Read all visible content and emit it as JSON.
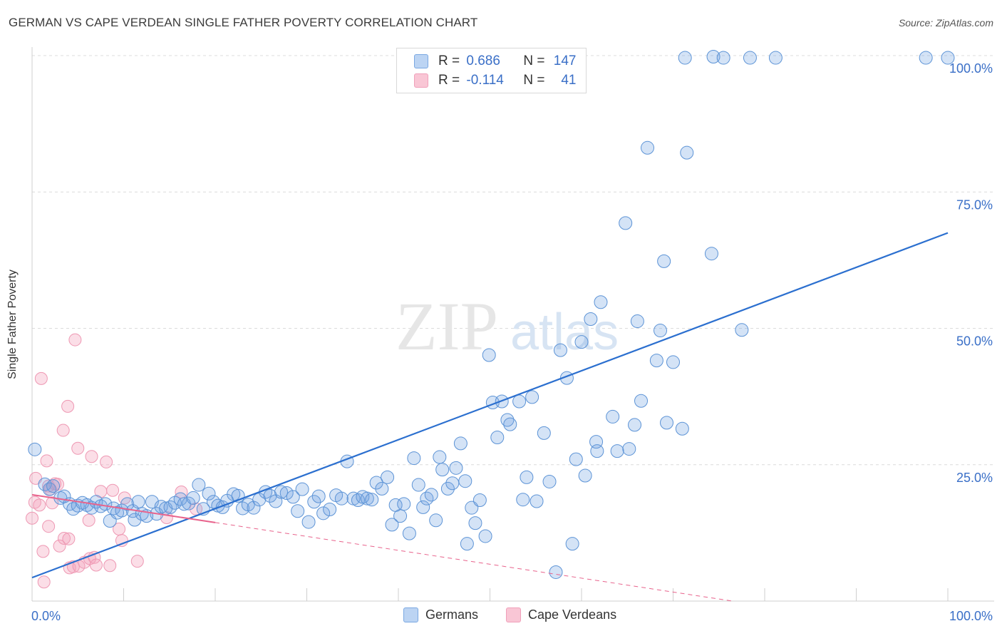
{
  "title": "GERMAN VS CAPE VERDEAN SINGLE FATHER POVERTY CORRELATION CHART",
  "source": "Source: ZipAtlas.com",
  "watermark": {
    "zip": "ZIP",
    "atlas": "atlas"
  },
  "legend": {
    "r_label": "R =",
    "n_label": "N =",
    "series1": {
      "r": "0.686",
      "n": "147"
    },
    "series2": {
      "r": "-0.114",
      "n": "41"
    }
  },
  "colors": {
    "germans": "#6fa3e0",
    "germans_line": "#2b6fcf",
    "cape": "#f3a0ba",
    "cape_line": "#e8638c",
    "axis_text": "#3a6fc7"
  },
  "chart_data": {
    "type": "scatter",
    "xlabel": "",
    "ylabel": "Single Father Poverty",
    "xlim": [
      0,
      100
    ],
    "ylim": [
      0,
      100
    ],
    "x_tick_labels": [
      "0.0%",
      "100.0%"
    ],
    "y_tick_labels": [
      "25.0%",
      "50.0%",
      "75.0%",
      "100.0%"
    ],
    "y_ticks": [
      25,
      50,
      75,
      100
    ],
    "grid": true,
    "legend_position": "top-center",
    "series": [
      {
        "name": "Germans",
        "color": "#6fa3e0",
        "trend": {
          "x": [
            0,
            100
          ],
          "y": [
            4.3,
            67.5
          ]
        },
        "points": [
          [
            0.3,
            27.8
          ],
          [
            1.4,
            21.4
          ],
          [
            1.9,
            20.5
          ],
          [
            2.3,
            21.1
          ],
          [
            3.1,
            18.9
          ],
          [
            3.5,
            19.2
          ],
          [
            4.1,
            17.8
          ],
          [
            4.5,
            16.9
          ],
          [
            5.0,
            17.5
          ],
          [
            5.5,
            18.0
          ],
          [
            6.0,
            17.6
          ],
          [
            6.5,
            17.1
          ],
          [
            7.0,
            18.2
          ],
          [
            7.5,
            17.4
          ],
          [
            8.0,
            17.8
          ],
          [
            8.5,
            14.7
          ],
          [
            8.9,
            17.0
          ],
          [
            9.3,
            16.2
          ],
          [
            9.8,
            16.6
          ],
          [
            10.4,
            17.8
          ],
          [
            11.0,
            16.5
          ],
          [
            11.2,
            14.9
          ],
          [
            11.6,
            18.2
          ],
          [
            12.0,
            16.0
          ],
          [
            12.5,
            15.6
          ],
          [
            13.1,
            18.2
          ],
          [
            13.6,
            16.0
          ],
          [
            14.1,
            17.3
          ],
          [
            14.6,
            17.0
          ],
          [
            15.1,
            17.2
          ],
          [
            15.6,
            18.0
          ],
          [
            16.2,
            18.7
          ],
          [
            16.6,
            17.8
          ],
          [
            17.1,
            17.9
          ],
          [
            17.6,
            18.9
          ],
          [
            18.2,
            21.3
          ],
          [
            18.7,
            16.9
          ],
          [
            19.3,
            19.7
          ],
          [
            19.8,
            18.2
          ],
          [
            20.3,
            17.5
          ],
          [
            20.8,
            17.2
          ],
          [
            21.3,
            18.4
          ],
          [
            22.0,
            19.6
          ],
          [
            22.5,
            19.3
          ],
          [
            23.0,
            17.0
          ],
          [
            23.6,
            17.7
          ],
          [
            24.2,
            17.1
          ],
          [
            24.8,
            18.6
          ],
          [
            25.5,
            20.0
          ],
          [
            26.0,
            19.3
          ],
          [
            26.6,
            18.3
          ],
          [
            27.2,
            20.0
          ],
          [
            27.8,
            19.8
          ],
          [
            28.5,
            19.1
          ],
          [
            29.0,
            16.5
          ],
          [
            29.5,
            20.5
          ],
          [
            30.2,
            14.5
          ],
          [
            30.8,
            18.2
          ],
          [
            31.3,
            19.2
          ],
          [
            31.8,
            16.1
          ],
          [
            32.5,
            16.8
          ],
          [
            33.2,
            19.4
          ],
          [
            33.8,
            18.8
          ],
          [
            34.4,
            25.6
          ],
          [
            35.1,
            18.8
          ],
          [
            35.6,
            18.5
          ],
          [
            36.1,
            19.1
          ],
          [
            36.6,
            18.8
          ],
          [
            37.1,
            18.6
          ],
          [
            37.6,
            21.7
          ],
          [
            38.2,
            20.6
          ],
          [
            38.8,
            22.7
          ],
          [
            39.3,
            14.0
          ],
          [
            39.7,
            17.6
          ],
          [
            40.2,
            15.6
          ],
          [
            40.6,
            17.8
          ],
          [
            41.2,
            12.4
          ],
          [
            41.7,
            26.2
          ],
          [
            42.2,
            21.3
          ],
          [
            42.7,
            17.2
          ],
          [
            43.1,
            18.8
          ],
          [
            43.6,
            19.5
          ],
          [
            44.1,
            14.8
          ],
          [
            44.5,
            26.4
          ],
          [
            44.8,
            24.1
          ],
          [
            45.4,
            20.6
          ],
          [
            45.9,
            21.6
          ],
          [
            46.3,
            24.4
          ],
          [
            46.8,
            28.9
          ],
          [
            47.3,
            22.0
          ],
          [
            47.5,
            10.5
          ],
          [
            48.0,
            17.1
          ],
          [
            48.4,
            14.3
          ],
          [
            48.9,
            18.5
          ],
          [
            49.5,
            11.9
          ],
          [
            49.9,
            45.1
          ],
          [
            50.3,
            36.4
          ],
          [
            50.8,
            30.0
          ],
          [
            51.3,
            36.6
          ],
          [
            51.9,
            33.2
          ],
          [
            52.2,
            32.4
          ],
          [
            53.2,
            36.6
          ],
          [
            53.6,
            18.6
          ],
          [
            54.0,
            22.7
          ],
          [
            54.6,
            37.4
          ],
          [
            55.1,
            18.3
          ],
          [
            55.9,
            30.8
          ],
          [
            56.5,
            21.9
          ],
          [
            57.2,
            5.3
          ],
          [
            57.7,
            46.0
          ],
          [
            58.4,
            40.9
          ],
          [
            59.0,
            10.5
          ],
          [
            59.4,
            26.0
          ],
          [
            60.0,
            47.5
          ],
          [
            60.4,
            23.0
          ],
          [
            61.0,
            51.7
          ],
          [
            61.6,
            29.2
          ],
          [
            61.7,
            27.5
          ],
          [
            62.1,
            54.8
          ],
          [
            63.4,
            33.8
          ],
          [
            63.9,
            27.5
          ],
          [
            64.8,
            69.3
          ],
          [
            65.2,
            27.9
          ],
          [
            65.8,
            32.3
          ],
          [
            66.1,
            51.3
          ],
          [
            66.5,
            36.7
          ],
          [
            67.2,
            83.1
          ],
          [
            68.2,
            44.1
          ],
          [
            68.6,
            49.6
          ],
          [
            69.0,
            62.3
          ],
          [
            69.3,
            32.7
          ],
          [
            70.0,
            43.8
          ],
          [
            71.0,
            31.6
          ],
          [
            71.3,
            99.6
          ],
          [
            71.5,
            82.2
          ],
          [
            74.2,
            63.7
          ],
          [
            74.4,
            99.8
          ],
          [
            75.5,
            99.6
          ],
          [
            77.5,
            49.7
          ],
          [
            78.4,
            99.6
          ],
          [
            81.2,
            99.6
          ],
          [
            97.6,
            99.6
          ],
          [
            100,
            99.6
          ]
        ]
      },
      {
        "name": "Cape Verdeans",
        "color": "#f3a0ba",
        "trend_solid": {
          "x": [
            0,
            20
          ],
          "y": [
            19.5,
            14.4
          ]
        },
        "trend_dashed": {
          "x": [
            20,
            100
          ],
          "y": [
            14.4,
            -6
          ]
        },
        "points": [
          [
            0.0,
            15.2
          ],
          [
            0.3,
            18.1
          ],
          [
            0.4,
            22.5
          ],
          [
            0.8,
            17.6
          ],
          [
            1.0,
            40.8
          ],
          [
            1.2,
            9.1
          ],
          [
            1.3,
            3.5
          ],
          [
            1.6,
            25.7
          ],
          [
            1.8,
            21.1
          ],
          [
            1.8,
            13.7
          ],
          [
            2.0,
            20.5
          ],
          [
            2.2,
            18.0
          ],
          [
            2.5,
            21.5
          ],
          [
            2.8,
            21.4
          ],
          [
            3.0,
            10.1
          ],
          [
            3.4,
            31.3
          ],
          [
            3.5,
            11.5
          ],
          [
            3.9,
            35.7
          ],
          [
            4.0,
            11.4
          ],
          [
            4.1,
            6.1
          ],
          [
            4.5,
            6.3
          ],
          [
            4.7,
            47.9
          ],
          [
            5.0,
            28.0
          ],
          [
            5.1,
            6.4
          ],
          [
            5.7,
            7.1
          ],
          [
            6.2,
            14.8
          ],
          [
            6.3,
            7.8
          ],
          [
            6.5,
            26.5
          ],
          [
            6.8,
            8.0
          ],
          [
            7.0,
            6.6
          ],
          [
            7.5,
            20.1
          ],
          [
            8.1,
            25.5
          ],
          [
            8.5,
            6.5
          ],
          [
            8.8,
            20.3
          ],
          [
            9.5,
            13.2
          ],
          [
            9.8,
            11.1
          ],
          [
            10.1,
            18.9
          ],
          [
            11.5,
            7.3
          ],
          [
            14.7,
            15.3
          ],
          [
            16.3,
            20.0
          ],
          [
            17.9,
            16.9
          ]
        ]
      }
    ]
  },
  "bottom_legend": {
    "germans": "Germans",
    "cape": "Cape Verdeans"
  }
}
